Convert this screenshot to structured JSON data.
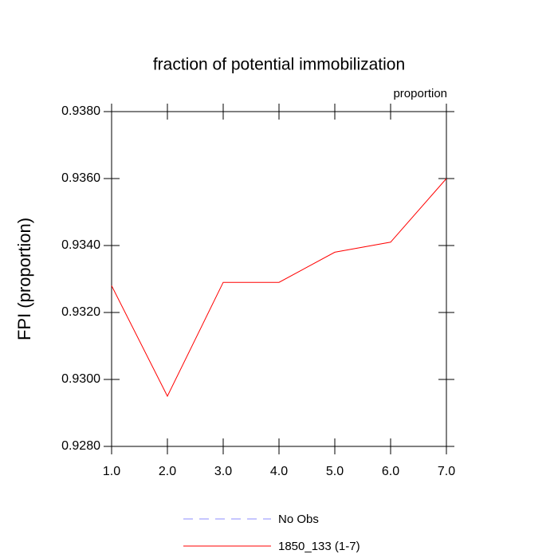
{
  "chart_data": {
    "type": "line",
    "title": "fraction of potential immobilization",
    "subtitle": "proportion",
    "y_label": "FPI  (proportion)",
    "x": [
      1,
      2,
      3,
      4,
      5,
      6,
      7
    ],
    "xlim": [
      1,
      7
    ],
    "xticks": [
      {
        "value": 1,
        "label": "1.0"
      },
      {
        "value": 2,
        "label": "2.0"
      },
      {
        "value": 3,
        "label": "3.0"
      },
      {
        "value": 4,
        "label": "4.0"
      },
      {
        "value": 5,
        "label": "5.0"
      },
      {
        "value": 6,
        "label": "6.0"
      },
      {
        "value": 7,
        "label": "7.0"
      }
    ],
    "ylim": [
      0.928,
      0.938
    ],
    "yticks": [
      {
        "value": 0.928,
        "label": "0.9280"
      },
      {
        "value": 0.93,
        "label": "0.9300"
      },
      {
        "value": 0.932,
        "label": "0.9320"
      },
      {
        "value": 0.934,
        "label": "0.9340"
      },
      {
        "value": 0.936,
        "label": "0.9360"
      },
      {
        "value": 0.938,
        "label": "0.9380"
      }
    ],
    "grid": false,
    "series": [
      {
        "name": "No Obs",
        "color": "#8c8cff",
        "dashed": true,
        "values": [
          null,
          null,
          null,
          null,
          null,
          null,
          null
        ]
      },
      {
        "name": "1850_133 (1-7)",
        "color": "#ff0000",
        "dashed": false,
        "values": [
          0.9328,
          0.9295,
          0.9329,
          0.9329,
          0.9338,
          0.9341,
          0.936
        ]
      }
    ]
  }
}
